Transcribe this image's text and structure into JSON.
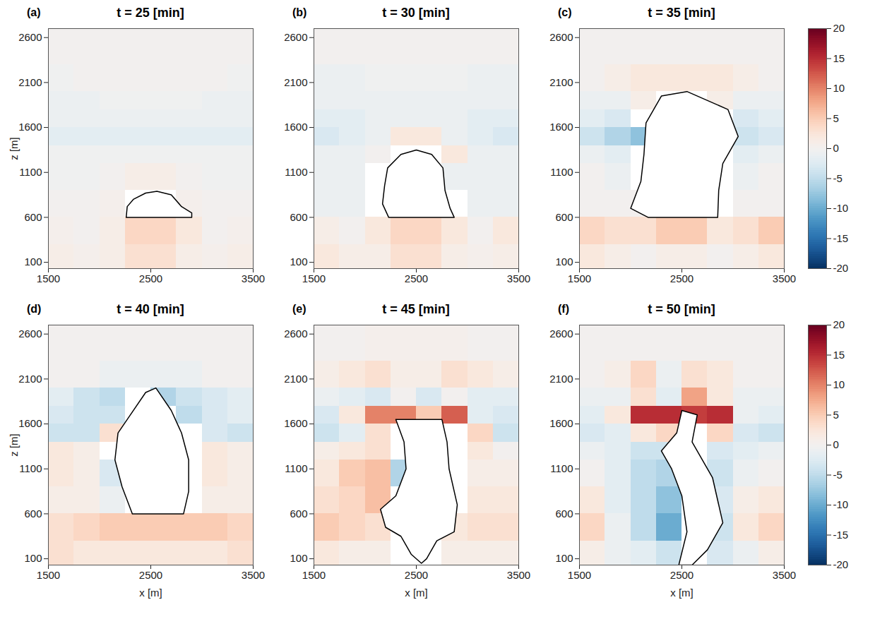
{
  "chart_data": [
    {
      "type": "heatmap",
      "title": "t = 25 [min]",
      "annotation": "(a)",
      "y_label": "z [m]",
      "xlim": [
        1500,
        3500
      ],
      "xticks": [
        1500,
        2500,
        3500
      ],
      "ylim": [
        30,
        2700
      ],
      "yticks": [
        100,
        600,
        1100,
        1600,
        2100,
        2600
      ],
      "x_edges": [
        1500,
        1750,
        2000,
        2250,
        2500,
        2750,
        3000,
        3250,
        3500
      ],
      "y_edges": [
        30,
        300,
        600,
        900,
        1200,
        1400,
        1600,
        1800,
        2000,
        2300,
        2700
      ],
      "cells": [
        [
          1,
          0.5,
          1,
          3,
          3,
          1,
          0.5,
          1
        ],
        [
          0.5,
          0,
          1,
          4,
          4,
          2,
          0,
          0.5
        ],
        [
          0,
          0,
          0.5,
          null,
          null,
          0.5,
          0,
          0
        ],
        [
          -0.5,
          -0.5,
          0,
          1,
          1,
          0,
          -0.5,
          -0.5
        ],
        [
          -0.5,
          -0.5,
          -0.5,
          -0.5,
          -0.5,
          -0.5,
          -0.5,
          -0.5
        ],
        [
          -2,
          -2,
          -2,
          -2,
          -2,
          -2,
          -2,
          -2
        ],
        [
          -1,
          -1,
          -1,
          -1,
          -1,
          -1,
          -1,
          -1
        ],
        [
          -1,
          -1,
          -0.5,
          -0.5,
          -0.5,
          -0.5,
          -1,
          -1
        ],
        [
          -0.5,
          0,
          0,
          0,
          0,
          0,
          0,
          -0.5
        ],
        [
          0,
          0,
          0,
          0,
          0,
          0,
          0,
          0
        ]
      ],
      "cloud_outline": [
        [
          2260,
          600
        ],
        [
          2900,
          600
        ],
        [
          2900,
          650
        ],
        [
          2800,
          720
        ],
        [
          2700,
          850
        ],
        [
          2560,
          890
        ],
        [
          2450,
          870
        ],
        [
          2330,
          800
        ],
        [
          2270,
          720
        ],
        [
          2260,
          600
        ]
      ]
    },
    {
      "type": "heatmap",
      "title": "t = 30 [min]",
      "annotation": "(b)",
      "xlim": [
        1500,
        3500
      ],
      "xticks": [
        1500,
        2500,
        3500
      ],
      "ylim": [
        30,
        2700
      ],
      "yticks": [
        100,
        600,
        1100,
        1600,
        2100,
        2600
      ],
      "x_edges": [
        1500,
        1750,
        2000,
        2250,
        2500,
        2750,
        3000,
        3250,
        3500
      ],
      "y_edges": [
        30,
        300,
        600,
        900,
        1200,
        1400,
        1600,
        1800,
        2000,
        2300,
        2700
      ],
      "cells": [
        [
          2,
          1,
          1,
          3,
          3,
          1,
          0.5,
          1
        ],
        [
          1,
          0,
          2,
          4,
          4,
          2,
          0,
          2
        ],
        [
          -1,
          -1,
          null,
          null,
          null,
          null,
          -1,
          -1
        ],
        [
          -1,
          -1,
          null,
          null,
          null,
          -1,
          -1,
          -1
        ],
        [
          -1,
          -1,
          0,
          null,
          null,
          2,
          -1,
          -1
        ],
        [
          -3,
          -2,
          -1,
          2,
          2,
          -1,
          -2,
          -3
        ],
        [
          -2,
          -2,
          -1,
          -1,
          -1,
          -1,
          -2,
          -2
        ],
        [
          -1,
          -1,
          -1,
          -1,
          -1,
          -1,
          -1,
          -1
        ],
        [
          -1,
          -1,
          -0.5,
          -0.5,
          -0.5,
          -0.5,
          -1,
          -1
        ],
        [
          0,
          0,
          0,
          0,
          0,
          0,
          0,
          0
        ]
      ],
      "cloud_outline": [
        [
          2230,
          600
        ],
        [
          2870,
          600
        ],
        [
          2830,
          700
        ],
        [
          2780,
          900
        ],
        [
          2760,
          1150
        ],
        [
          2650,
          1300
        ],
        [
          2500,
          1350
        ],
        [
          2350,
          1300
        ],
        [
          2220,
          1150
        ],
        [
          2190,
          950
        ],
        [
          2170,
          750
        ],
        [
          2230,
          600
        ]
      ]
    },
    {
      "type": "heatmap",
      "title": "t = 35 [min]",
      "annotation": "(c)",
      "xlim": [
        1500,
        3500
      ],
      "xticks": [
        1500,
        2500,
        3500
      ],
      "ylim": [
        30,
        2700
      ],
      "yticks": [
        100,
        600,
        1100,
        1600,
        2100,
        2600
      ],
      "x_edges": [
        1500,
        1750,
        2000,
        2250,
        2500,
        2750,
        3000,
        3250,
        3500
      ],
      "y_edges": [
        30,
        300,
        600,
        900,
        1200,
        1400,
        1600,
        1800,
        2000,
        2300,
        2700
      ],
      "cells": [
        [
          2,
          1,
          0,
          1,
          1,
          0,
          1,
          2
        ],
        [
          4,
          3,
          3,
          5,
          5,
          2,
          3,
          5
        ],
        [
          0,
          0,
          0,
          null,
          null,
          null,
          0,
          0
        ],
        [
          0,
          -1,
          null,
          null,
          null,
          null,
          -1,
          0
        ],
        [
          -1,
          -2,
          null,
          null,
          null,
          null,
          -2,
          -1
        ],
        [
          -4,
          -6,
          -8,
          null,
          null,
          null,
          -4,
          -3
        ],
        [
          -2,
          -3,
          null,
          null,
          null,
          null,
          -3,
          -2
        ],
        [
          -1,
          -1,
          1,
          null,
          null,
          1,
          -1,
          -1
        ],
        [
          0,
          1,
          2,
          2,
          2,
          2,
          1,
          0
        ],
        [
          0,
          0,
          0,
          0,
          0,
          0,
          0,
          0
        ]
      ],
      "cloud_outline": [
        [
          2170,
          600
        ],
        [
          2850,
          600
        ],
        [
          2860,
          900
        ],
        [
          2900,
          1200
        ],
        [
          3050,
          1500
        ],
        [
          2950,
          1800
        ],
        [
          2750,
          1900
        ],
        [
          2550,
          2000
        ],
        [
          2300,
          1950
        ],
        [
          2150,
          1650
        ],
        [
          2130,
          1300
        ],
        [
          2100,
          1000
        ],
        [
          2000,
          700
        ],
        [
          2170,
          600
        ]
      ],
      "color_scale": {
        "range": [
          -20,
          20
        ],
        "ticks": [
          -20,
          -15,
          -10,
          -5,
          0,
          5,
          10,
          15,
          20
        ]
      }
    },
    {
      "type": "heatmap",
      "title": "t = 40 [min]",
      "annotation": "(d)",
      "y_label": "z [m]",
      "x_label": "x [m]",
      "xlim": [
        1500,
        3500
      ],
      "xticks": [
        1500,
        2500,
        3500
      ],
      "ylim": [
        30,
        2700
      ],
      "yticks": [
        100,
        600,
        1100,
        1600,
        2100,
        2600
      ],
      "x_edges": [
        1500,
        1750,
        2000,
        2250,
        2500,
        2750,
        3000,
        3250,
        3500
      ],
      "y_edges": [
        30,
        300,
        600,
        900,
        1200,
        1400,
        1600,
        1800,
        2000,
        2300,
        2700
      ],
      "cells": [
        [
          3,
          2,
          2,
          2,
          2,
          2,
          2,
          3
        ],
        [
          3,
          4,
          5,
          5,
          5,
          5,
          5,
          4
        ],
        [
          1,
          1,
          -1,
          null,
          null,
          null,
          1,
          1
        ],
        [
          2,
          1,
          -3,
          null,
          null,
          null,
          2,
          1
        ],
        [
          2,
          1,
          null,
          null,
          null,
          null,
          2,
          1
        ],
        [
          -4,
          -4,
          3,
          null,
          null,
          null,
          -3,
          -4
        ],
        [
          -3,
          -4,
          -4,
          null,
          null,
          -5,
          -3,
          -2
        ],
        [
          -2,
          -4,
          -5,
          null,
          -6,
          -4,
          -3,
          -2
        ],
        [
          0,
          0,
          -1,
          -1,
          -1,
          -1,
          0,
          0
        ],
        [
          0,
          0,
          0,
          0,
          0,
          0,
          0,
          0
        ]
      ],
      "cloud_outline": [
        [
          2320,
          600
        ],
        [
          2820,
          600
        ],
        [
          2870,
          850
        ],
        [
          2870,
          1200
        ],
        [
          2800,
          1500
        ],
        [
          2700,
          1750
        ],
        [
          2550,
          2000
        ],
        [
          2450,
          1950
        ],
        [
          2300,
          1700
        ],
        [
          2180,
          1500
        ],
        [
          2150,
          1200
        ],
        [
          2220,
          900
        ],
        [
          2320,
          600
        ]
      ]
    },
    {
      "type": "heatmap",
      "title": "t = 45 [min]",
      "annotation": "(e)",
      "x_label": "x [m]",
      "xlim": [
        1500,
        3500
      ],
      "xticks": [
        1500,
        2500,
        3500
      ],
      "ylim": [
        30,
        2700
      ],
      "yticks": [
        100,
        600,
        1100,
        1600,
        2100,
        2600
      ],
      "x_edges": [
        1500,
        1750,
        2000,
        2250,
        2500,
        2750,
        3000,
        3250,
        3500
      ],
      "y_edges": [
        30,
        300,
        600,
        900,
        1200,
        1400,
        1600,
        1800,
        2000,
        2300,
        2700
      ],
      "cells": [
        [
          2,
          1,
          1,
          null,
          null,
          1,
          1,
          1
        ],
        [
          5,
          4,
          3,
          null,
          null,
          2,
          3,
          3
        ],
        [
          3,
          4,
          6,
          null,
          null,
          null,
          2,
          2
        ],
        [
          2,
          5,
          6,
          -6,
          null,
          null,
          1,
          1
        ],
        [
          1,
          2,
          3,
          null,
          null,
          null,
          2,
          0
        ],
        [
          -4,
          -2,
          3,
          null,
          null,
          null,
          4,
          -4
        ],
        [
          -3,
          2,
          10,
          10,
          5,
          12,
          -2,
          -3
        ],
        [
          -1,
          -2,
          -3,
          0,
          -3,
          0,
          -2,
          -2
        ],
        [
          1,
          2,
          3,
          1,
          1,
          3,
          2,
          1
        ],
        [
          0,
          0,
          0.5,
          0.5,
          0.5,
          0.5,
          0,
          0
        ]
      ],
      "cloud_outline": [
        [
          2300,
          1650
        ],
        [
          2750,
          1650
        ],
        [
          2800,
          1400
        ],
        [
          2820,
          1100
        ],
        [
          2900,
          700
        ],
        [
          2870,
          400
        ],
        [
          2700,
          300
        ],
        [
          2600,
          100
        ],
        [
          2550,
          50
        ],
        [
          2450,
          150
        ],
        [
          2350,
          350
        ],
        [
          2200,
          450
        ],
        [
          2150,
          650
        ],
        [
          2300,
          800
        ],
        [
          2400,
          1100
        ],
        [
          2380,
          1400
        ],
        [
          2300,
          1650
        ]
      ]
    },
    {
      "type": "heatmap",
      "title": "t = 50 [min]",
      "annotation": "(f)",
      "x_label": "x [m]",
      "xlim": [
        1500,
        3500
      ],
      "xticks": [
        1500,
        2500,
        3500
      ],
      "ylim": [
        30,
        2700
      ],
      "yticks": [
        100,
        600,
        1100,
        1600,
        2100,
        2600
      ],
      "x_edges": [
        1500,
        1750,
        2000,
        2250,
        2500,
        2750,
        3000,
        3250,
        3500
      ],
      "y_edges": [
        30,
        300,
        600,
        900,
        1200,
        1400,
        1600,
        1800,
        2000,
        2300,
        2700
      ],
      "cells": [
        [
          1,
          -1,
          -2,
          -4,
          null,
          -3,
          -1,
          1
        ],
        [
          4,
          -1,
          -5,
          -10,
          null,
          -4,
          2,
          4
        ],
        [
          2,
          -2,
          -5,
          -8,
          null,
          -3,
          1,
          2
        ],
        [
          0,
          -2,
          -5,
          -6,
          null,
          -4,
          -1,
          0
        ],
        [
          -1,
          -2,
          -4,
          -4,
          null,
          -3,
          -2,
          -1
        ],
        [
          -3,
          -2,
          2,
          4,
          null,
          4,
          -3,
          -4
        ],
        [
          -2,
          2,
          15,
          15,
          14,
          15,
          -1,
          -2
        ],
        [
          -1,
          -1,
          3,
          -2,
          8,
          2,
          -1,
          -1
        ],
        [
          0,
          1,
          4,
          -1,
          3,
          2,
          0,
          0
        ],
        [
          0,
          0,
          0,
          0,
          0,
          0,
          0,
          0
        ]
      ],
      "cloud_outline": [
        [
          2500,
          1750
        ],
        [
          2650,
          1700
        ],
        [
          2600,
          1400
        ],
        [
          2800,
          1000
        ],
        [
          2900,
          500
        ],
        [
          2750,
          200
        ],
        [
          2600,
          30
        ],
        [
          2470,
          30
        ],
        [
          2550,
          400
        ],
        [
          2500,
          800
        ],
        [
          2400,
          1100
        ],
        [
          2300,
          1300
        ],
        [
          2450,
          1500
        ],
        [
          2500,
          1750
        ]
      ],
      "color_scale": {
        "range": [
          -20,
          20
        ],
        "ticks": [
          -20,
          -15,
          -10,
          -5,
          0,
          5,
          10,
          15,
          20
        ]
      }
    }
  ]
}
